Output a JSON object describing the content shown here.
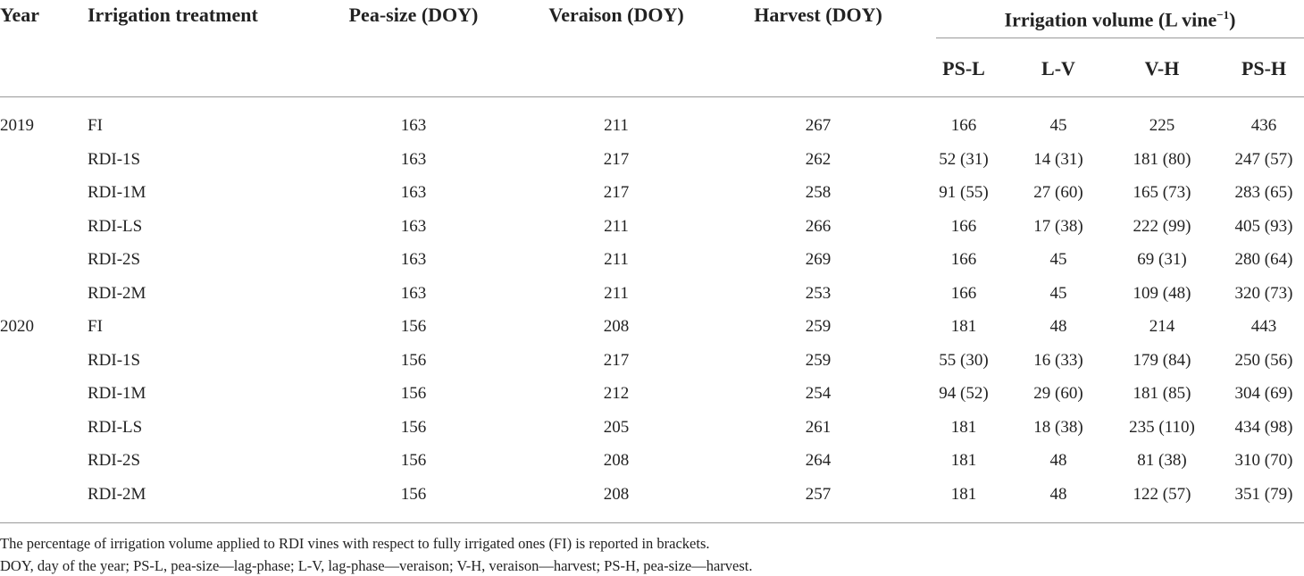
{
  "table": {
    "columns": [
      "Year",
      "Irrigation treatment",
      "Pea-size (DOY)",
      "Veraison (DOY)",
      "Harvest (DOY)"
    ],
    "volume_header": {
      "text": "Irrigation volume (L vine",
      "superscript": "−1",
      "closing": ")"
    },
    "subcolumns": [
      "PS-L",
      "L-V",
      "V-H",
      "PS-H"
    ],
    "groups": [
      {
        "year": "2019",
        "rows": [
          [
            "FI",
            "163",
            "211",
            "267",
            "166",
            "45",
            "225",
            "436"
          ],
          [
            "RDI-1S",
            "163",
            "217",
            "262",
            "52 (31)",
            "14 (31)",
            "181 (80)",
            "247 (57)"
          ],
          [
            "RDI-1M",
            "163",
            "217",
            "258",
            "91 (55)",
            "27 (60)",
            "165 (73)",
            "283 (65)"
          ],
          [
            "RDI-LS",
            "163",
            "211",
            "266",
            "166",
            "17 (38)",
            "222 (99)",
            "405 (93)"
          ],
          [
            "RDI-2S",
            "163",
            "211",
            "269",
            "166",
            "45",
            "69 (31)",
            "280 (64)"
          ],
          [
            "RDI-2M",
            "163",
            "211",
            "253",
            "166",
            "45",
            "109 (48)",
            "320 (73)"
          ]
        ]
      },
      {
        "year": "2020",
        "rows": [
          [
            "FI",
            "156",
            "208",
            "259",
            "181",
            "48",
            "214",
            "443"
          ],
          [
            "RDI-1S",
            "156",
            "217",
            "259",
            "55 (30)",
            "16 (33)",
            "179 (84)",
            "250 (56)"
          ],
          [
            "RDI-1M",
            "156",
            "212",
            "254",
            "94 (52)",
            "29 (60)",
            "181 (85)",
            "304 (69)"
          ],
          [
            "RDI-LS",
            "156",
            "205",
            "261",
            "181",
            "18 (38)",
            "235 (110)",
            "434 (98)"
          ],
          [
            "RDI-2S",
            "156",
            "208",
            "264",
            "181",
            "48",
            "81 (38)",
            "310 (70)"
          ],
          [
            "RDI-2M",
            "156",
            "208",
            "257",
            "181",
            "48",
            "122 (57)",
            "351 (79)"
          ]
        ]
      }
    ],
    "footnotes": [
      "The percentage of irrigation volume applied to RDI vines with respect to fully irrigated ones (FI) is reported in brackets.",
      "DOY, day of the year; PS-L, pea-size—lag-phase; L-V, lag-phase—veraison; V-H, veraison—harvest; PS-H, pea-size—harvest."
    ]
  }
}
